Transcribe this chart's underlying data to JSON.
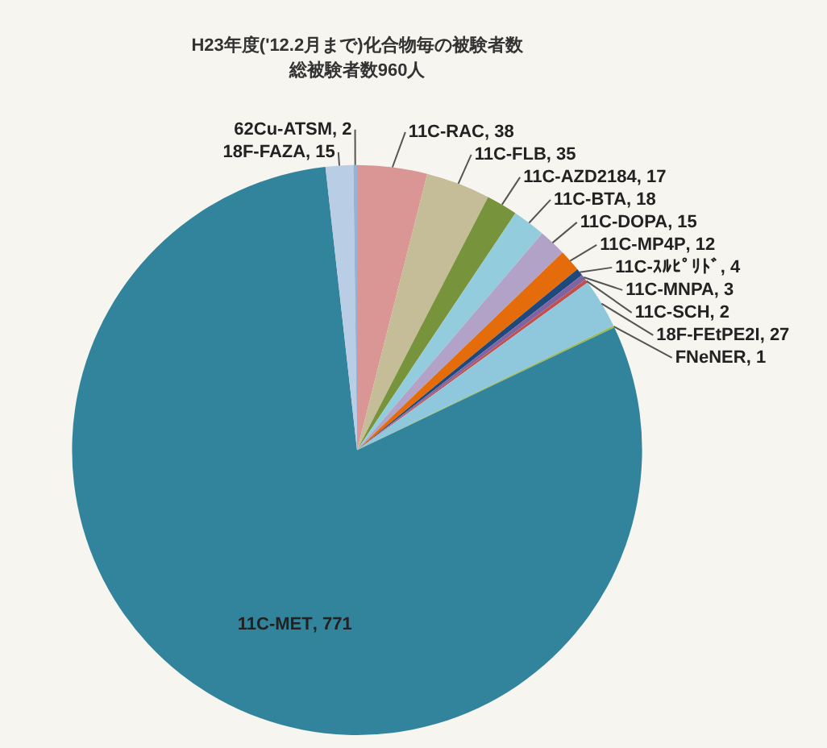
{
  "chart_data": {
    "type": "pie",
    "title": "H23年度('12.2月まで)化合物毎の被験者数",
    "subtitle": "総被験者数960人",
    "categories": [
      "11C-RAC",
      "11C-FLB",
      "11C-AZD2184",
      "11C-BTA",
      "11C-DOPA",
      "11C-MP4P",
      "11C-ｽﾙﾋﾟﾘﾄﾞ",
      "11C-MNPA",
      "11C-SCH",
      "18F-FEtPE2I",
      "FNeNER",
      "11C-MET",
      "18F-FAZA",
      "62Cu-ATSM"
    ],
    "values": [
      38,
      35,
      17,
      18,
      15,
      12,
      4,
      3,
      2,
      27,
      1,
      771,
      15,
      2
    ],
    "colors": [
      "#d99694",
      "#c4bd97",
      "#77933c",
      "#93cddd",
      "#b3a2c7",
      "#e46c0a",
      "#1f497d",
      "#8064a2",
      "#c0504d",
      "#8fc7dc",
      "#9bbb59",
      "#31849b",
      "#b9cde5",
      "#95b3d7"
    ],
    "value_labels": [
      ", 38",
      ", 35",
      ", 17",
      ", 18",
      ", 15",
      ", 12",
      ", 4",
      ", 3",
      ", 2",
      ", 27",
      ", 1",
      ", 771",
      ", 15",
      ", 2"
    ],
    "legend": false
  }
}
